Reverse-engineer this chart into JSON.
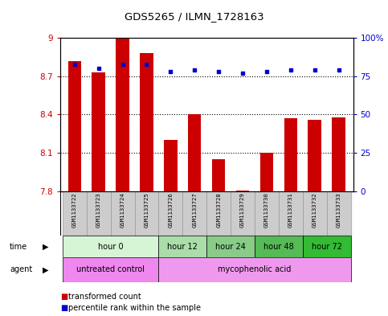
{
  "title": "GDS5265 / ILMN_1728163",
  "samples": [
    "GSM1133722",
    "GSM1133723",
    "GSM1133724",
    "GSM1133725",
    "GSM1133726",
    "GSM1133727",
    "GSM1133728",
    "GSM1133729",
    "GSM1133730",
    "GSM1133731",
    "GSM1133732",
    "GSM1133733"
  ],
  "transformed_count": [
    8.82,
    8.73,
    9.0,
    8.88,
    8.2,
    8.4,
    8.05,
    7.805,
    8.1,
    8.37,
    8.36,
    8.38
  ],
  "percentile_rank": [
    83,
    80,
    83,
    83,
    78,
    79,
    78,
    77,
    78,
    79,
    79,
    79
  ],
  "ylim_left": [
    7.8,
    9.0
  ],
  "ylim_right": [
    0,
    100
  ],
  "yticks_left": [
    7.8,
    8.1,
    8.4,
    8.7,
    9.0
  ],
  "yticks_right": [
    0,
    25,
    50,
    75,
    100
  ],
  "ytick_labels_left": [
    "7.8",
    "8.1",
    "8.4",
    "8.7",
    "9"
  ],
  "ytick_labels_right": [
    "0",
    "25",
    "50",
    "75",
    "100%"
  ],
  "bar_color": "#cc0000",
  "dot_color": "#0000cc",
  "background_color": "#ffffff",
  "grid_color": "#000000",
  "time_groups": [
    {
      "label": "hour 0",
      "start": 0,
      "end": 4,
      "color": "#d5f5d5"
    },
    {
      "label": "hour 12",
      "start": 4,
      "end": 6,
      "color": "#aaddaa"
    },
    {
      "label": "hour 24",
      "start": 6,
      "end": 8,
      "color": "#88cc88"
    },
    {
      "label": "hour 48",
      "start": 8,
      "end": 10,
      "color": "#55bb55"
    },
    {
      "label": "hour 72",
      "start": 10,
      "end": 12,
      "color": "#33bb33"
    }
  ],
  "agent_groups": [
    {
      "label": "untreated control",
      "start": 0,
      "end": 4,
      "color": "#ee88ee"
    },
    {
      "label": "mycophenolic acid",
      "start": 4,
      "end": 12,
      "color": "#ee99ee"
    }
  ],
  "legend_bar_label": "transformed count",
  "legend_dot_label": "percentile rank within the sample",
  "sample_bg_color": "#cccccc"
}
